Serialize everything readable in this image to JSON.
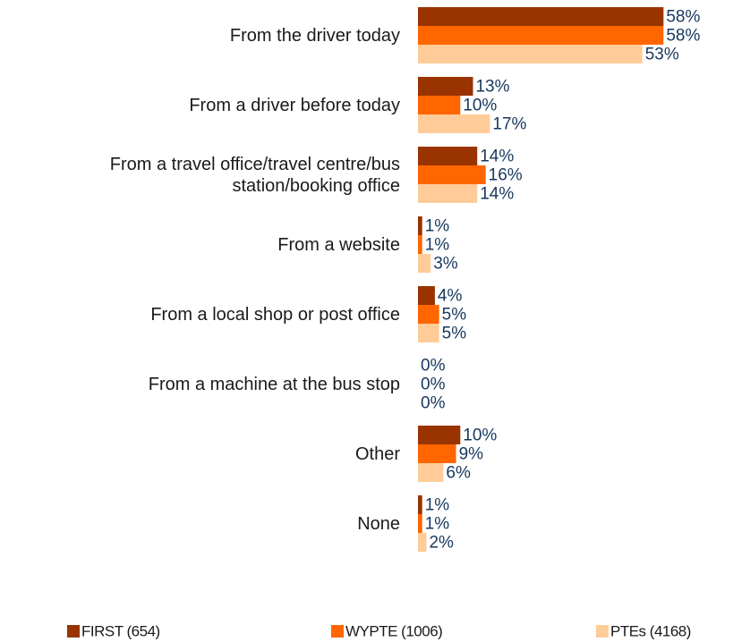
{
  "chart_data": {
    "type": "bar",
    "orientation": "horizontal",
    "categories": [
      "From the driver today",
      "From a driver before today",
      "From a travel office/travel centre/bus station/booking office",
      "From a website",
      "From a local shop or post office",
      "From a machine at the bus stop",
      "Other",
      "None"
    ],
    "series": [
      {
        "name": "FIRST (654)",
        "color": "#993300",
        "values": [
          58,
          13,
          14,
          1,
          4,
          0,
          10,
          1
        ],
        "value_labels": [
          "58%",
          "13%",
          "14%",
          "1%",
          "4%",
          "0%",
          "10%",
          "1%"
        ]
      },
      {
        "name": "WYPTE (1006)",
        "color": "#ff6600",
        "values": [
          58,
          10,
          16,
          1,
          5,
          0,
          9,
          1
        ],
        "value_labels": [
          "58%",
          "10%",
          "16%",
          "1%",
          "5%",
          "0%",
          "9%",
          "1%"
        ]
      },
      {
        "name": "PTEs (4168)",
        "color": "#ffcc99",
        "values": [
          53,
          17,
          14,
          3,
          5,
          0,
          6,
          2
        ],
        "value_labels": [
          "53%",
          "17%",
          "14%",
          "3%",
          "5%",
          "0%",
          "6%",
          "2%"
        ]
      }
    ],
    "legend": "bottom"
  }
}
